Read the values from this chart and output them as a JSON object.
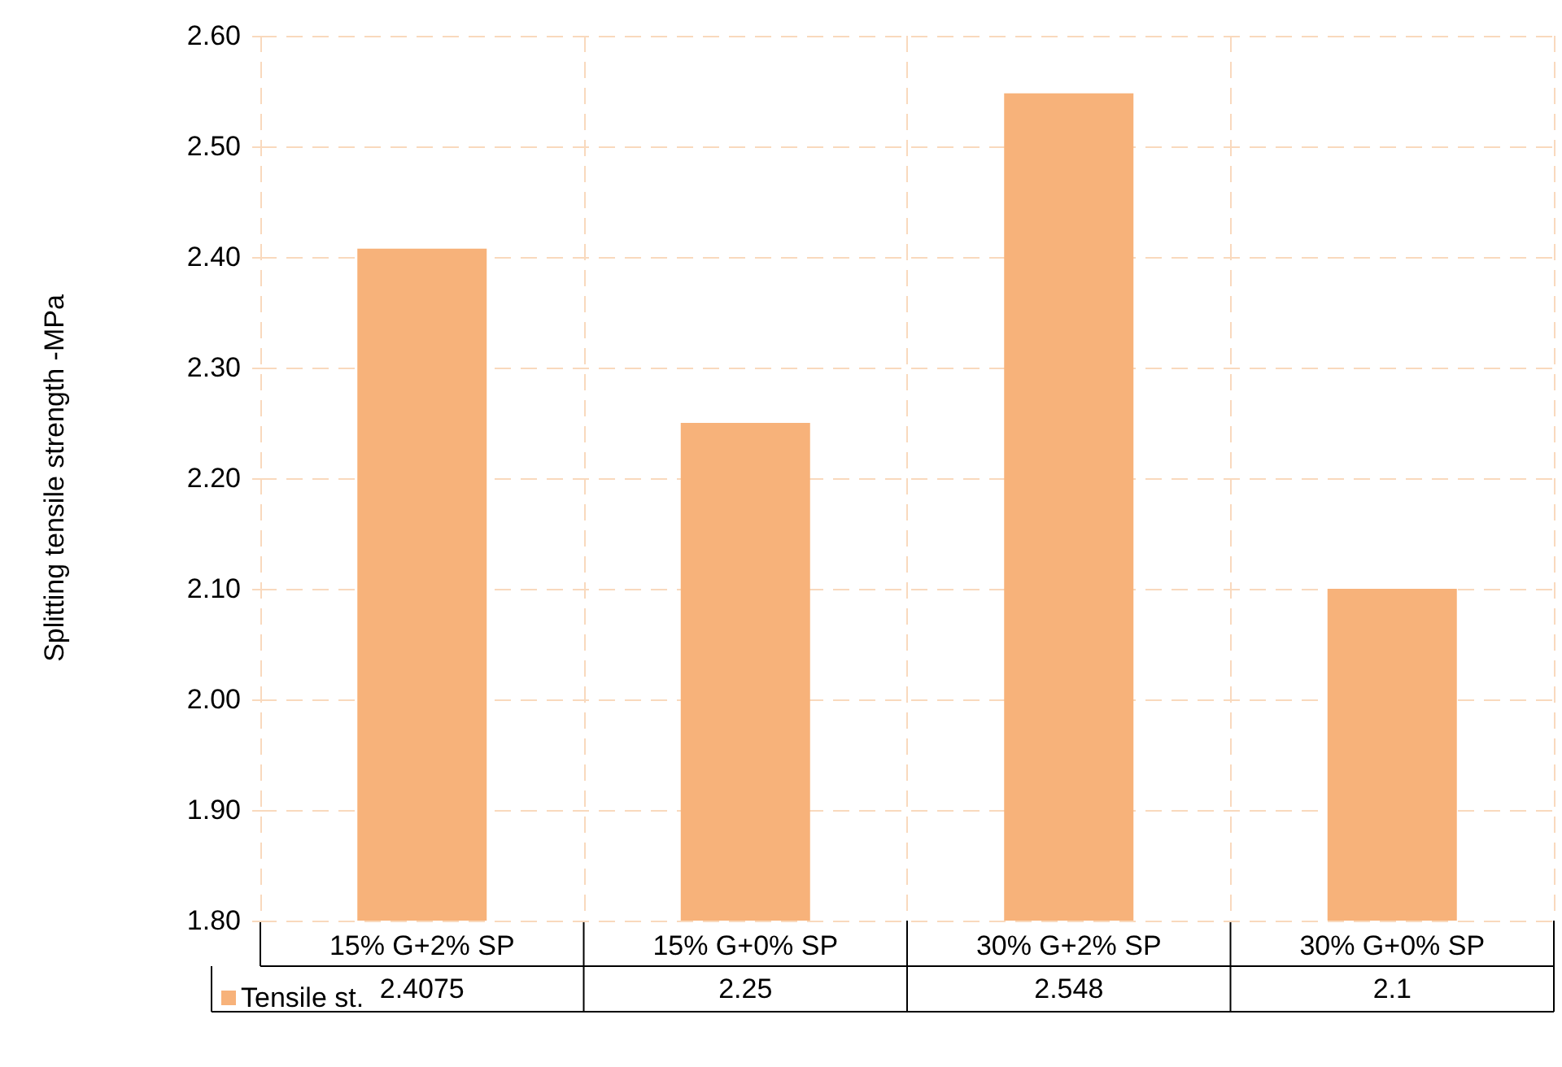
{
  "chart_data": {
    "type": "bar",
    "ylabel": "Splitting tensile strength -MPa",
    "categories": [
      "15% G+2% SP",
      "15% G+0% SP",
      "30% G+2% SP",
      "30% G+0% SP"
    ],
    "series": [
      {
        "name": "Tensile st.",
        "color": "#f7b27a",
        "values": [
          2.4075,
          2.25,
          2.548,
          2.1
        ]
      }
    ],
    "ylim": [
      1.8,
      2.6
    ],
    "yticks": [
      {
        "value": 1.8,
        "label": "1.80"
      },
      {
        "value": 1.9,
        "label": "1.90"
      },
      {
        "value": 2.0,
        "label": "2.00"
      },
      {
        "value": 2.1,
        "label": "2.10"
      },
      {
        "value": 2.2,
        "label": "2.20"
      },
      {
        "value": 2.3,
        "label": "2.30"
      },
      {
        "value": 2.4,
        "label": "2.40"
      },
      {
        "value": 2.5,
        "label": "2.50"
      },
      {
        "value": 2.6,
        "label": "2.60"
      }
    ],
    "grid": true,
    "legend": "bottom",
    "data_labels": true
  }
}
